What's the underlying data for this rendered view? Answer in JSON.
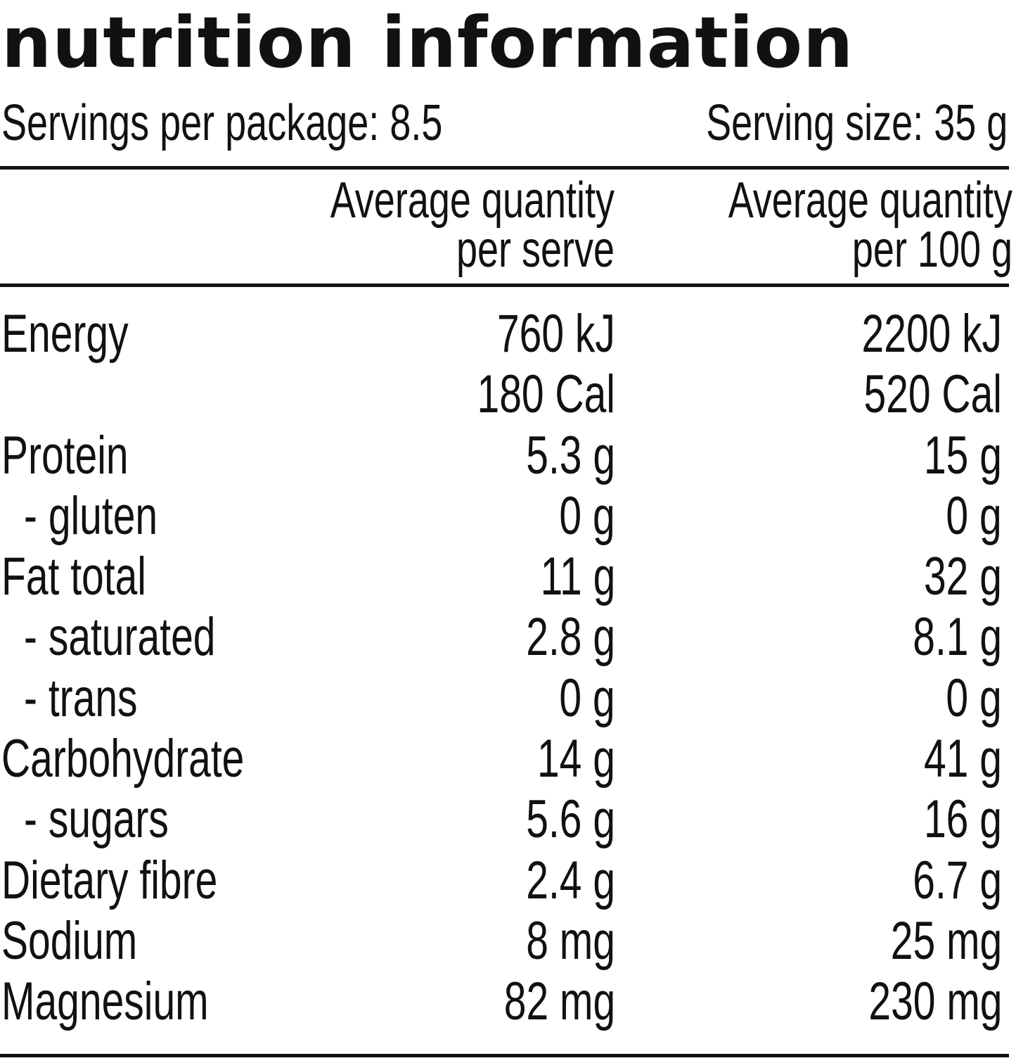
{
  "title": "nutrition information",
  "servings_per_package": "Servings per package: 8.5",
  "serving_size": "Serving size: 35 g",
  "columns": {
    "per_serve": [
      "Average quantity",
      "per serve"
    ],
    "per_100g": [
      "Average quantity",
      "per 100 g"
    ]
  },
  "rows": [
    {
      "label": "Energy",
      "per_serve": "760 kJ",
      "per_100g": "2200 kJ",
      "sub": false
    },
    {
      "label": "",
      "per_serve": "180 Cal",
      "per_100g": "520 Cal",
      "sub": false
    },
    {
      "label": "Protein",
      "per_serve": "5.3 g",
      "per_100g": "15 g",
      "sub": false
    },
    {
      "label": "- gluten",
      "per_serve": "0 g",
      "per_100g": "0 g",
      "sub": true
    },
    {
      "label": "Fat total",
      "per_serve": "11 g",
      "per_100g": "32 g",
      "sub": false
    },
    {
      "label": "- saturated",
      "per_serve": "2.8 g",
      "per_100g": "8.1 g",
      "sub": true
    },
    {
      "label": "- trans",
      "per_serve": "0 g",
      "per_100g": "0 g",
      "sub": true
    },
    {
      "label": "Carbohydrate",
      "per_serve": "14 g",
      "per_100g": "41 g",
      "sub": false
    },
    {
      "label": "- sugars",
      "per_serve": "5.6 g",
      "per_100g": "16 g",
      "sub": true
    },
    {
      "label": "Dietary fibre",
      "per_serve": "2.4 g",
      "per_100g": "6.7 g",
      "sub": false
    },
    {
      "label": "Sodium",
      "per_serve": "8 mg",
      "per_100g": "25 mg",
      "sub": false
    },
    {
      "label": "Magnesium",
      "per_serve": "82 mg",
      "per_100g": "230 mg",
      "sub": false
    }
  ]
}
